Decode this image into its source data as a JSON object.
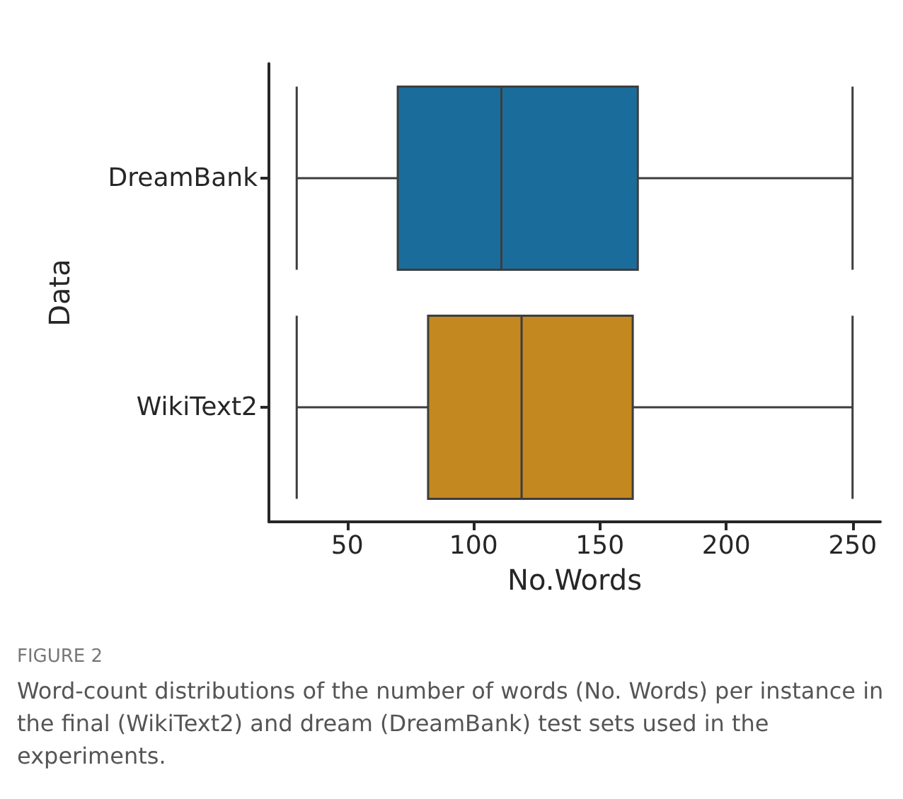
{
  "chart_data": {
    "type": "box",
    "orientation": "horizontal",
    "xlabel": "No.Words",
    "ylabel": "Data",
    "categories": [
      "DreamBank",
      "WikiText2"
    ],
    "boxes": [
      {
        "low": 30,
        "q1": 70,
        "median": 111,
        "q3": 165,
        "high": 250
      },
      {
        "low": 30,
        "q1": 82,
        "median": 119,
        "q3": 163,
        "high": 250
      }
    ],
    "colors": [
      "#1a6d9b",
      "#c38820"
    ],
    "xlim": [
      19,
      261
    ],
    "xticks": [
      50,
      100,
      150,
      200,
      250
    ],
    "annotations": [
      "FIGURE 2",
      "Word-count distributions of the number of words (No. Words) per instance in the final (WikiText2) and dream (DreamBank) test sets used in the experiments."
    ]
  }
}
